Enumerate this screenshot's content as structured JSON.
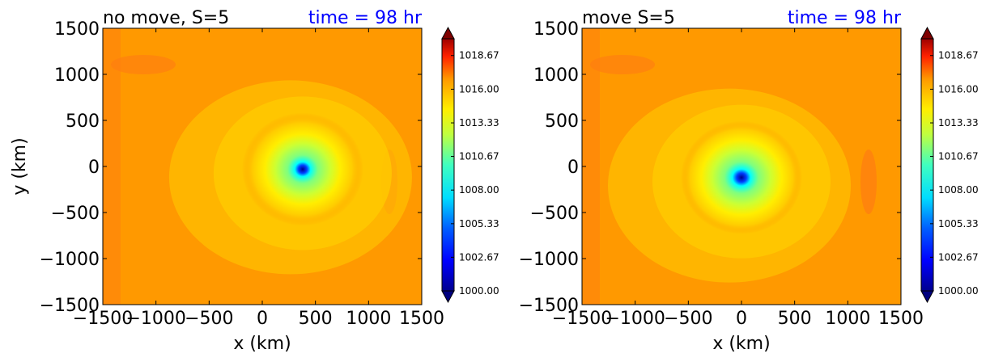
{
  "chart_data": [
    {
      "type": "heatmap",
      "title": "no move, S=5",
      "time_label": "time = 98 hr",
      "xlabel": "x (km)",
      "ylabel": "y (km)",
      "xlim": [
        -1500,
        1500
      ],
      "ylim": [
        -1500,
        1500
      ],
      "xticks": [
        "−1500",
        "−1000",
        "−500",
        "0",
        "500",
        "1000",
        "1500"
      ],
      "yticks": [
        "1500",
        "1000",
        "500",
        "0",
        "−500",
        "−1000",
        "−1500"
      ],
      "xtick_values": [
        -1500,
        -1000,
        -500,
        0,
        500,
        1000,
        1500
      ],
      "ytick_values": [
        1500,
        1000,
        500,
        0,
        -500,
        -1000,
        -1500
      ],
      "center_min": {
        "x": 380,
        "y": -30,
        "value": 1000.5
      },
      "colorbar": {
        "vmin": 1000,
        "vmax": 1020,
        "ticks": [
          "1000.00",
          "1002.67",
          "1005.33",
          "1008.00",
          "1010.67",
          "1013.33",
          "1016.00",
          "1018.67"
        ],
        "tick_values": [
          1000,
          1002.67,
          1005.33,
          1008,
          1010.67,
          1013.33,
          1016,
          1018.67
        ],
        "extend": "both"
      }
    },
    {
      "type": "heatmap",
      "title": "move S=5",
      "time_label": "time = 98 hr",
      "xlabel": "x (km)",
      "ylabel": "",
      "xlim": [
        -1500,
        1500
      ],
      "ylim": [
        -1500,
        1500
      ],
      "xticks": [
        "−1500",
        "−1000",
        "−500",
        "0",
        "500",
        "1000",
        "1500"
      ],
      "yticks": [
        "1500",
        "1000",
        "500",
        "0",
        "−500",
        "−1000",
        "−1500"
      ],
      "xtick_values": [
        -1500,
        -1000,
        -500,
        0,
        500,
        1000,
        1500
      ],
      "ytick_values": [
        1500,
        1000,
        500,
        0,
        -500,
        -1000,
        -1500
      ],
      "center_min": {
        "x": 0,
        "y": -120,
        "value": 1001.0
      },
      "colorbar": {
        "vmin": 1000,
        "vmax": 1020,
        "ticks": [
          "1000.00",
          "1002.67",
          "1005.33",
          "1008.00",
          "1010.67",
          "1013.33",
          "1016.00",
          "1018.67"
        ],
        "tick_values": [
          1000,
          1002.67,
          1005.33,
          1008,
          1010.67,
          1013.33,
          1016,
          1018.67
        ],
        "extend": "both"
      }
    }
  ],
  "colors": {
    "background_field": "#ff9900",
    "outer_patch": "#ff7f0f",
    "time_label": "#0000ff"
  }
}
